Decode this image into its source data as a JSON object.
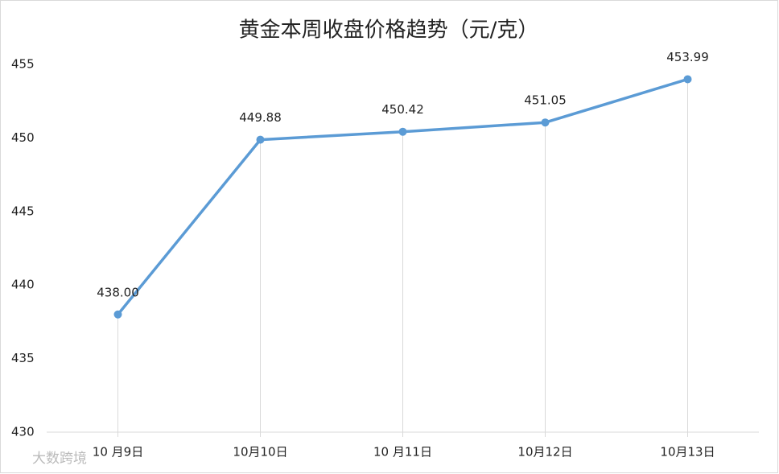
{
  "chart_data": {
    "type": "line",
    "title": "黄金本周收盘价格趋势（元/克）",
    "categories": [
      "10 月9日",
      "10月10日",
      "10 月11日",
      "10月12日",
      "10月13日"
    ],
    "values": [
      438,
      449.88,
      450.42,
      451.05,
      453.99
    ],
    "value_labels": [
      "438.00",
      "449.88",
      "450.42",
      "451.05",
      "453.99"
    ],
    "color": "#5b9bd5",
    "ylim": [
      430,
      455
    ],
    "yticks": [
      430,
      435,
      440,
      445,
      450,
      455
    ],
    "grid": false,
    "watermark": "大数跨境"
  }
}
